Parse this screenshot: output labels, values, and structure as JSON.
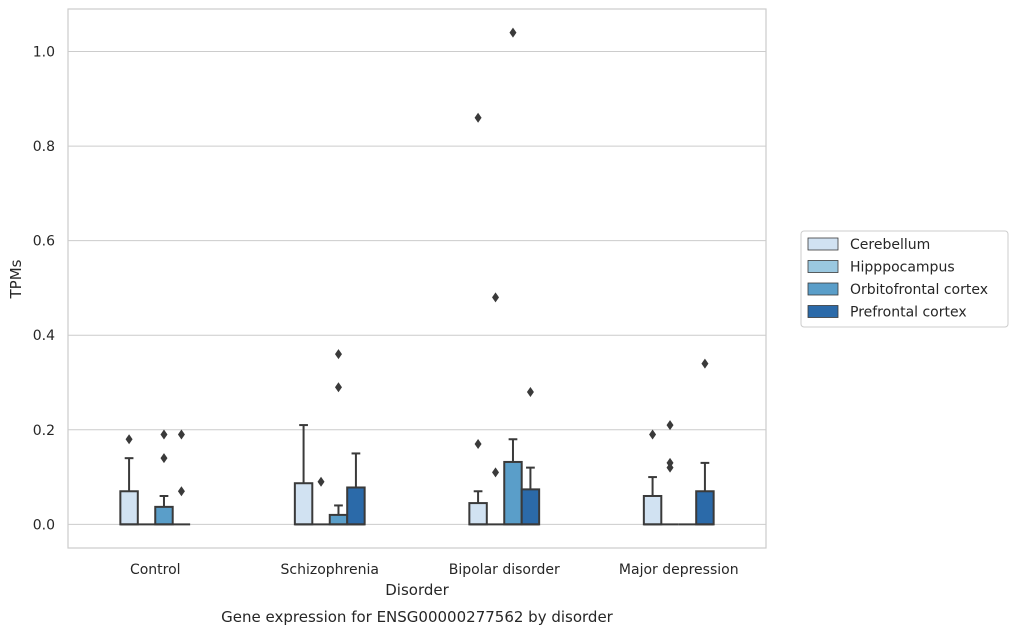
{
  "chart_data": {
    "type": "box",
    "caption": "Gene expression for ENSG00000277562 by disorder",
    "xlabel": "Disorder",
    "ylabel": "TPMs",
    "ylim": [
      -0.05,
      1.09
    ],
    "yticks": [
      "0.0",
      "0.2",
      "0.4",
      "0.6",
      "0.8",
      "1.0"
    ],
    "ytick_values": [
      0.0,
      0.2,
      0.4,
      0.6,
      0.8,
      1.0
    ],
    "grid": true,
    "legend_position": "right",
    "categories": [
      "Control",
      "Schizophrenia",
      "Bipolar disorder",
      "Major depression"
    ],
    "series": [
      {
        "name": "Cerebellum",
        "color": "#d1e2f2",
        "boxes": [
          {
            "q1": 0.0,
            "median": 0.0,
            "q3": 0.07,
            "whisker_low": 0.0,
            "whisker_high": 0.14,
            "outliers": [
              0.18
            ]
          },
          {
            "q1": 0.0,
            "median": 0.0,
            "q3": 0.087,
            "whisker_low": 0.0,
            "whisker_high": 0.21,
            "outliers": []
          },
          {
            "q1": 0.0,
            "median": 0.0,
            "q3": 0.045,
            "whisker_low": 0.0,
            "whisker_high": 0.07,
            "outliers": [
              0.17,
              0.86
            ]
          },
          {
            "q1": 0.0,
            "median": 0.0,
            "q3": 0.06,
            "whisker_low": 0.0,
            "whisker_high": 0.1,
            "outliers": [
              0.19
            ]
          }
        ]
      },
      {
        "name": "Hipppocampus",
        "color": "#9ac8e0",
        "boxes": [
          {
            "q1": 0.0,
            "median": 0.0,
            "q3": 0.0,
            "whisker_low": 0.0,
            "whisker_high": 0.0,
            "outliers": []
          },
          {
            "q1": 0.0,
            "median": 0.0,
            "q3": 0.0,
            "whisker_low": 0.0,
            "whisker_high": 0.0,
            "outliers": [
              0.09
            ]
          },
          {
            "q1": 0.0,
            "median": 0.0,
            "q3": 0.0,
            "whisker_low": 0.0,
            "whisker_high": 0.0,
            "outliers": [
              0.11,
              0.48
            ]
          },
          {
            "q1": 0.0,
            "median": 0.0,
            "q3": 0.0,
            "whisker_low": 0.0,
            "whisker_high": 0.0,
            "outliers": [
              0.12,
              0.13,
              0.21
            ]
          }
        ]
      },
      {
        "name": "Orbitofrontal cortex",
        "color": "#5a9ec9",
        "boxes": [
          {
            "q1": 0.0,
            "median": 0.0,
            "q3": 0.037,
            "whisker_low": 0.0,
            "whisker_high": 0.06,
            "outliers": [
              0.14,
              0.19
            ]
          },
          {
            "q1": 0.0,
            "median": 0.0,
            "q3": 0.02,
            "whisker_low": 0.0,
            "whisker_high": 0.04,
            "outliers": [
              0.29,
              0.36
            ]
          },
          {
            "q1": 0.0,
            "median": 0.0,
            "q3": 0.132,
            "whisker_low": 0.0,
            "whisker_high": 0.18,
            "outliers": [
              1.04
            ]
          },
          {
            "q1": 0.0,
            "median": 0.0,
            "q3": 0.0,
            "whisker_low": 0.0,
            "whisker_high": 0.0,
            "outliers": []
          }
        ]
      },
      {
        "name": "Prefrontal cortex",
        "color": "#2b6aa9",
        "boxes": [
          {
            "q1": 0.0,
            "median": 0.0,
            "q3": 0.0,
            "whisker_low": 0.0,
            "whisker_high": 0.0,
            "outliers": [
              0.07,
              0.19
            ]
          },
          {
            "q1": 0.0,
            "median": 0.0,
            "q3": 0.078,
            "whisker_low": 0.0,
            "whisker_high": 0.15,
            "outliers": []
          },
          {
            "q1": 0.0,
            "median": 0.0,
            "q3": 0.074,
            "whisker_low": 0.0,
            "whisker_high": 0.12,
            "outliers": [
              0.28
            ]
          },
          {
            "q1": 0.0,
            "median": 0.0,
            "q3": 0.07,
            "whisker_low": 0.0,
            "whisker_high": 0.13,
            "outliers": [
              0.34
            ]
          }
        ]
      }
    ]
  }
}
